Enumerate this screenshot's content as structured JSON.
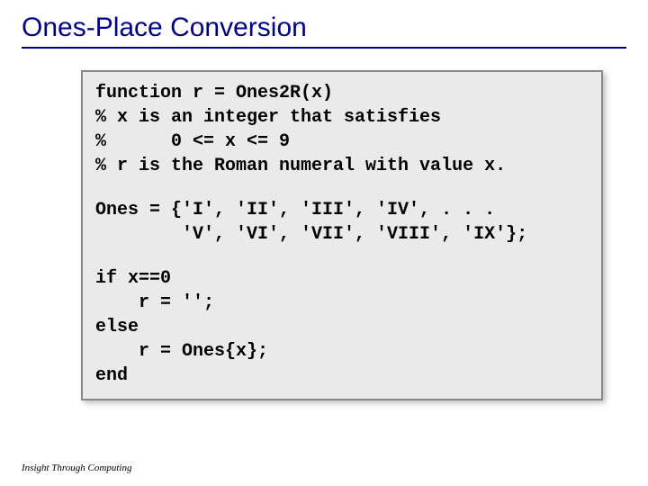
{
  "title": "Ones-Place Conversion",
  "code": {
    "l1": "function r = Ones2R(x)",
    "l2": "% x is an integer that satisfies",
    "l3": "%      0 <= x <= 9",
    "l4": "% r is the Roman numeral with value x.",
    "l5": "Ones = {'I', 'II', 'III', 'IV', . . .",
    "l6": "        'V', 'VI', 'VII', 'VIII', 'IX'};",
    "l7": "if x==0",
    "l8": "    r = '';",
    "l9": "else",
    "l10": "    r = Ones{x};",
    "l11": "end"
  },
  "footer": "Insight Through Computing",
  "colors": {
    "title_color": "#000080",
    "code_bg": "#eaeaea",
    "code_border": "#888888",
    "page_bg": "#ffffff"
  },
  "typography": {
    "title_font": "Comic Sans MS",
    "title_size_pt": 24,
    "code_font": "Courier New",
    "code_size_pt": 16,
    "code_weight": "bold",
    "footer_size_pt": 9,
    "footer_style": "italic"
  }
}
